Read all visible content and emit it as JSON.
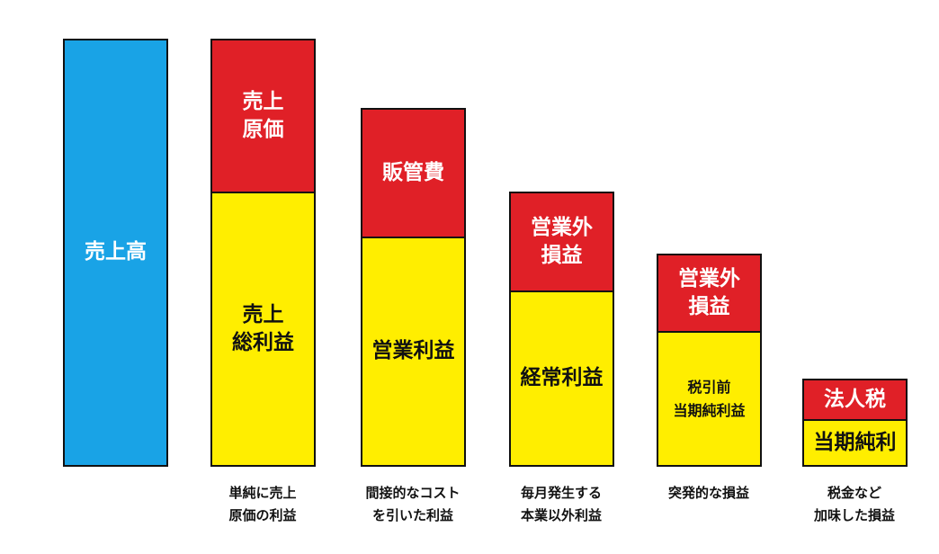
{
  "columns": [
    {
      "blocks": [
        {
          "label": "売上高",
          "kind": "revenue"
        }
      ],
      "caption": ""
    },
    {
      "blocks": [
        {
          "label": "売上\n原価",
          "kind": "cost"
        },
        {
          "label": "売上\n総利益",
          "kind": "profit"
        }
      ],
      "caption": "単純に売上\n原価の利益"
    },
    {
      "blocks": [
        {
          "label": "販管費",
          "kind": "cost"
        },
        {
          "label": "営業利益",
          "kind": "profit"
        }
      ],
      "caption": "間接的なコスト\nを引いた利益"
    },
    {
      "blocks": [
        {
          "label": "営業外\n損益",
          "kind": "cost"
        },
        {
          "label": "経常利益",
          "kind": "profit"
        }
      ],
      "caption": "毎月発生する\n本業以外利益"
    },
    {
      "blocks": [
        {
          "label": "営業外\n損益",
          "kind": "cost"
        },
        {
          "label": "税引前\n当期純利益",
          "kind": "profit"
        }
      ],
      "caption": "突発的な損益"
    },
    {
      "blocks": [
        {
          "label": "法人税",
          "kind": "cost"
        },
        {
          "label": "当期純利",
          "kind": "profit"
        }
      ],
      "caption": "税金など\n加味した損益"
    }
  ],
  "colors": {
    "revenue": "#19a3e6",
    "cost": "#e02027",
    "profit": "#ffee00",
    "border": "#111111"
  }
}
